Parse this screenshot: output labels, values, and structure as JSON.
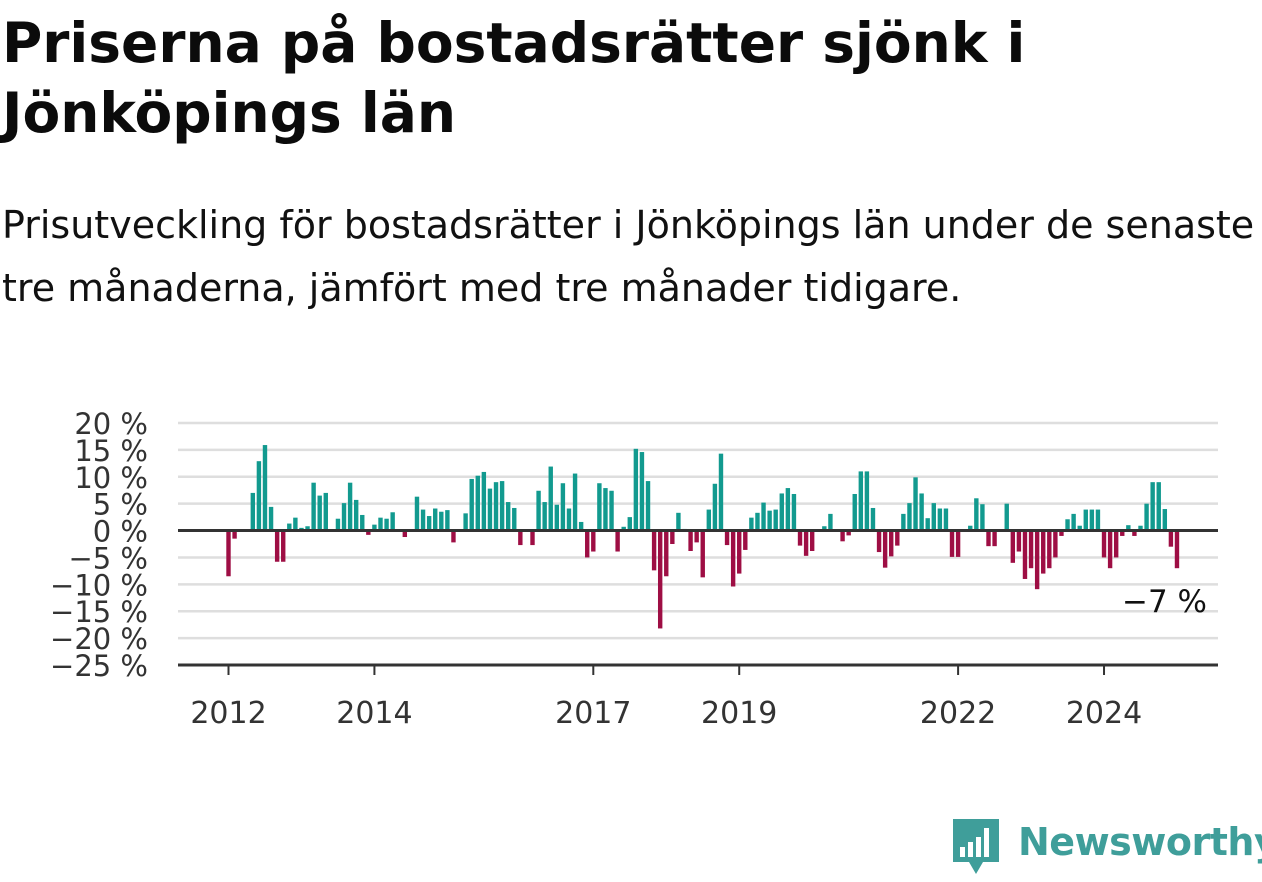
{
  "title": "Priserna på bostadsrätter sjönk i Jönköpings län",
  "subtitle": "Prisutveckling för bostadsrätter i Jönköpings län under de senaste tre månaderna, jämfört med tre månader tidigare.",
  "brand": {
    "name": "Newsworthy",
    "color": "#3f9e9a"
  },
  "colors": {
    "positive": "#129a8f",
    "negative": "#9e0e44",
    "grid": "#dedede",
    "axis": "#333333"
  },
  "chart_data": {
    "type": "bar",
    "title": "Priserna på bostadsrätter sjönk i Jönköpings län",
    "subtitle": "Prisutveckling för bostadsrätter i Jönköpings län under de senaste tre månaderna, jämfört med tre månader tidigare.",
    "ylim": [
      -25,
      20
    ],
    "y_ticks": [
      20,
      15,
      10,
      5,
      0,
      -5,
      -10,
      -15,
      -20,
      -25
    ],
    "y_tick_labels": [
      "20 %",
      "15 %",
      "10 %",
      "5 %",
      "0 %",
      "−5 %",
      "−10 %",
      "−15 %",
      "−20 %",
      "−25 %"
    ],
    "grid": true,
    "x_ticks": [
      {
        "label": "2012",
        "index": 0
      },
      {
        "label": "2014",
        "index": 24
      },
      {
        "label": "2017",
        "index": 60
      },
      {
        "label": "2019",
        "index": 84
      },
      {
        "label": "2022",
        "index": 120
      },
      {
        "label": "2024",
        "index": 144
      }
    ],
    "series": [
      {
        "values": [
          -8.5,
          -1.5,
          0,
          0,
          7,
          12.9,
          15.9,
          4.4,
          -5.8,
          -5.8,
          1.3,
          2.4,
          0.5,
          0.8,
          8.9,
          6.5,
          7,
          0,
          2.2,
          5.1,
          8.9,
          5.7,
          2.9,
          -0.8,
          1.1,
          2.4,
          2.2,
          3.4,
          0,
          -1.2,
          0,
          6.3,
          3.9,
          2.7,
          4.1,
          3.5,
          3.8,
          -2.2,
          0,
          3.2,
          9.6,
          10.2,
          10.9,
          7.8,
          9,
          9.2,
          5.3,
          4.2,
          -2.7,
          0,
          -2.7,
          7.4,
          5.3,
          11.9,
          4.8,
          8.8,
          4.1,
          10.6,
          1.6,
          -5,
          -3.9,
          8.8,
          7.9,
          7.4,
          -3.9,
          0.7,
          2.5,
          15.2,
          14.6,
          9.2,
          -7.4,
          -18.2,
          -8.5,
          -2.5,
          3.3,
          0.3,
          -3.8,
          -2.2,
          -8.7,
          3.9,
          8.7,
          14.3,
          -2.7,
          -10.4,
          -8,
          -3.6,
          2.4,
          3.3,
          5.2,
          3.7,
          3.9,
          6.9,
          7.9,
          6.8,
          -2.8,
          -4.7,
          -3.8,
          0,
          0.8,
          3.1,
          0,
          -2,
          -0.9,
          6.8,
          11,
          11,
          4.2,
          -4,
          -6.9,
          -4.8,
          -2.8,
          3.1,
          5.1,
          9.9,
          6.9,
          2.3,
          5.1,
          4.1,
          4.1,
          -4.9,
          -4.9,
          0,
          0.9,
          6,
          4.9,
          -2.9,
          -2.9,
          0,
          5,
          -6,
          -3.9,
          -9,
          -7,
          -10.9,
          -8,
          -7,
          -5,
          -1,
          2.1,
          3.1,
          0.9,
          3.9,
          3.9,
          3.9,
          -5,
          -7,
          -5,
          -1,
          1,
          -1,
          0.9,
          5,
          9,
          9,
          4,
          -3,
          -7
        ]
      }
    ],
    "last_value_label": "−7 %"
  }
}
